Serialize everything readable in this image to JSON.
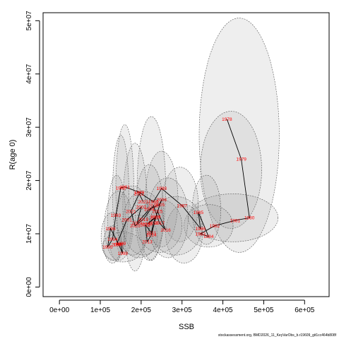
{
  "chart_data": {
    "type": "scatter",
    "title": "",
    "xlabel": "SSB",
    "ylabel": "R(age 0)",
    "xlim": [
      -40000,
      660000
    ],
    "ylim": [
      -1800000,
      51500000
    ],
    "x_ticks": [
      0,
      100000,
      200000,
      300000,
      400000,
      500000,
      600000
    ],
    "x_tick_labels": [
      "0e+00",
      "1e+05",
      "2e+05",
      "3e+05",
      "4e+05",
      "5e+05",
      "6e+05"
    ],
    "y_ticks": [
      0,
      10000000,
      20000000,
      30000000,
      40000000,
      50000000
    ],
    "y_tick_labels": [
      "0e+00",
      "1e+07",
      "2e+07",
      "3e+07",
      "4e+07",
      "5e+07"
    ],
    "grid": false,
    "legend": "none",
    "colors": {
      "path": "#000000",
      "labels": "#ff0000",
      "ellipse_fill": "#999999",
      "ellipse_stroke": "#555555"
    },
    "footer": "stockassessment.org, BMD2026_11_KeyVarObs_b.r19609_git1cc464b808f",
    "series": [
      {
        "labels": [
          "1978",
          "1979",
          "1980",
          "1981",
          "1982",
          "1983",
          "1984",
          "1985",
          "1986",
          "1987",
          "1988",
          "1989",
          "1990",
          "1991",
          "1992",
          "1993",
          "1994",
          "1995",
          "1996",
          "1997",
          "1998",
          "1999",
          "2000",
          "2001",
          "2002",
          "2003",
          "2004",
          "2005",
          "2006",
          "2007",
          "2008",
          "2009",
          "2010",
          "2011",
          "2012",
          "2013",
          "2014",
          "2015",
          "2016",
          "2017",
          "2018",
          "2019",
          "2020",
          "2021",
          "2022",
          "2023"
        ],
        "x": [
          410000,
          445000,
          465000,
          430000,
          380000,
          345000,
          365000,
          340000,
          345000,
          300000,
          250000,
          230000,
          195000,
          160000,
          150000,
          138000,
          130000,
          118000,
          125000,
          145000,
          155000,
          150000,
          140000,
          165000,
          200000,
          190000,
          220000,
          245000,
          250000,
          235000,
          215000,
          235000,
          230000,
          225000,
          210000,
          215000,
          225000,
          240000,
          260000,
          245000,
          230000,
          205000,
          185000,
          175000,
          195000,
          205000
        ],
        "y": [
          31500000,
          24000000,
          13000000,
          12500000,
          11500000,
          10000000,
          9500000,
          14000000,
          11000000,
          15300000,
          18500000,
          16000000,
          17800000,
          18800000,
          18600000,
          13500000,
          9000000,
          7500000,
          11000000,
          8000000,
          6300000,
          8200000,
          8000000,
          12600000,
          15000000,
          12000000,
          14600000,
          15500000,
          16400000,
          13000000,
          11800000,
          13200000,
          12000000,
          10200000,
          11700000,
          8500000,
          9800000,
          14200000,
          10700000,
          12000000,
          15300000,
          12700000,
          11500000,
          14200000,
          17500000,
          16000000
        ],
        "ellipses": [
          {
            "cx": 440000,
            "cy": 28500000,
            "rx": 98000,
            "ry": 22000000
          },
          {
            "cx": 420000,
            "cy": 22000000,
            "rx": 75000,
            "ry": 11000000
          },
          {
            "cx": 425000,
            "cy": 13000000,
            "rx": 110000,
            "ry": 4500000
          },
          {
            "cx": 365000,
            "cy": 11500000,
            "rx": 60000,
            "ry": 4000000
          },
          {
            "cx": 360000,
            "cy": 14500000,
            "rx": 35000,
            "ry": 6500000
          },
          {
            "cx": 295000,
            "cy": 15500000,
            "rx": 45000,
            "ry": 7000000
          },
          {
            "cx": 305000,
            "cy": 10000000,
            "rx": 45000,
            "ry": 5500000
          },
          {
            "cx": 250000,
            "cy": 16500000,
            "rx": 40000,
            "ry": 9000000
          },
          {
            "cx": 225000,
            "cy": 18500000,
            "rx": 35000,
            "ry": 13500000
          },
          {
            "cx": 220000,
            "cy": 14000000,
            "rx": 35000,
            "ry": 9000000
          },
          {
            "cx": 185000,
            "cy": 15000000,
            "rx": 30000,
            "ry": 12000000
          },
          {
            "cx": 160000,
            "cy": 18500000,
            "rx": 22000,
            "ry": 12000000
          },
          {
            "cx": 150000,
            "cy": 17500000,
            "rx": 20000,
            "ry": 11000000
          },
          {
            "cx": 140000,
            "cy": 13000000,
            "rx": 22000,
            "ry": 8000000
          },
          {
            "cx": 145000,
            "cy": 11500000,
            "rx": 35000,
            "ry": 6500000
          },
          {
            "cx": 130000,
            "cy": 9500000,
            "rx": 28000,
            "ry": 4500000
          },
          {
            "cx": 130000,
            "cy": 8000000,
            "rx": 22000,
            "ry": 3500000
          },
          {
            "cx": 155000,
            "cy": 7500000,
            "rx": 50000,
            "ry": 2800000
          },
          {
            "cx": 195000,
            "cy": 9500000,
            "rx": 45000,
            "ry": 4000000
          },
          {
            "cx": 205000,
            "cy": 12000000,
            "rx": 50000,
            "ry": 6000000
          },
          {
            "cx": 245000,
            "cy": 11500000,
            "rx": 55000,
            "ry": 5000000
          },
          {
            "cx": 265000,
            "cy": 13000000,
            "rx": 50000,
            "ry": 7500000
          },
          {
            "cx": 285000,
            "cy": 11500000,
            "rx": 65000,
            "ry": 5500000
          },
          {
            "cx": 180000,
            "cy": 12500000,
            "rx": 40000,
            "ry": 6500000
          }
        ]
      }
    ]
  }
}
